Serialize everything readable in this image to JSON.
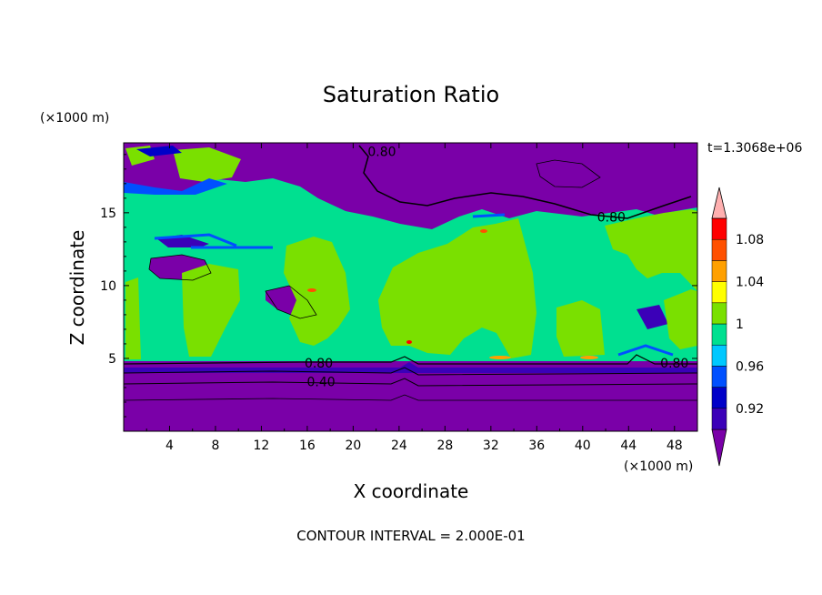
{
  "chart_data": {
    "type": "heatmap",
    "title": "Saturation Ratio",
    "xlabel": "X coordinate",
    "ylabel": "Z coordinate",
    "x_unit": "(×1000 m)",
    "y_unit": "(×1000 m)",
    "xlim": [
      0,
      50
    ],
    "ylim": [
      0,
      19.8
    ],
    "x_ticks": [
      "4",
      "8",
      "12",
      "16",
      "20",
      "24",
      "28",
      "32",
      "36",
      "40",
      "44",
      "48"
    ],
    "y_ticks": [
      "5",
      "10",
      "15"
    ],
    "time_label": "t=1.3068e+06",
    "contour_interval_text": "CONTOUR INTERVAL = 2.000E-01",
    "contour_labels": [
      {
        "text": "0.80",
        "x": 22.5,
        "y": 19.2
      },
      {
        "text": "0.80",
        "x": 42.5,
        "y": 14.7
      },
      {
        "text": "0.80",
        "x": 17.0,
        "y": 4.7
      },
      {
        "text": "0.80",
        "x": 48.0,
        "y": 4.7
      },
      {
        "text": "0.40",
        "x": 17.2,
        "y": 3.4
      }
    ],
    "colorbar": {
      "levels": [
        0.9,
        0.92,
        0.94,
        0.96,
        0.98,
        1.0,
        1.02,
        1.04,
        1.06,
        1.08,
        1.1
      ],
      "tick_labels": [
        "0.92",
        "0.96",
        "1",
        "1.04",
        "1.08"
      ],
      "colors": [
        "#7a00a8",
        "#3b00b8",
        "#0000c8",
        "#0050ff",
        "#00c8ff",
        "#00e090",
        "#7ae000",
        "#ffff00",
        "#ffa000",
        "#ff5000",
        "#ff0000",
        "#ffb0b0"
      ]
    },
    "legend_position": "right"
  }
}
